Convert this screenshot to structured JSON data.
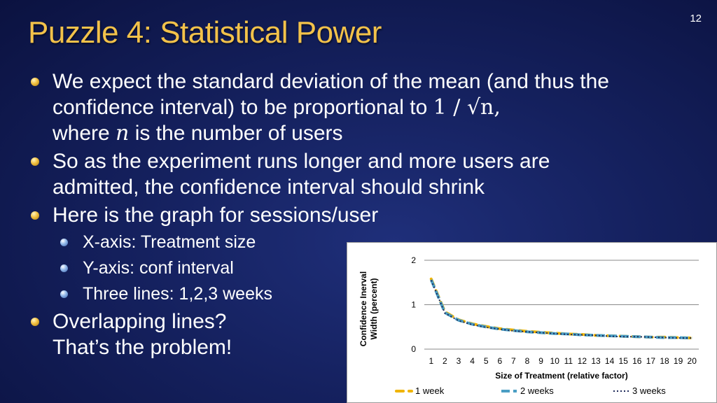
{
  "slide": {
    "number": "12",
    "title": "Puzzle 4: Statistical Power"
  },
  "bullets": {
    "b1_line1": "We expect the standard deviation of the mean (and thus the",
    "b1_line2_a": "confidence interval) to be proportional to ",
    "b1_math": "1 / √n,",
    "b1_line3_a": "where ",
    "b1_n": "n",
    "b1_line3_b": " is the number of users",
    "b2_line1": "So as the experiment runs longer and more users are",
    "b2_line2": "admitted, the confidence interval should shrink",
    "b3": "Here is the graph for sessions/user",
    "sub1": "X-axis: Treatment size",
    "sub2": "Y-axis: conf interval",
    "sub3": "Three lines: 1,2,3 weeks",
    "b4_line1": "Overlapping lines?",
    "b4_line2": "That’s the problem!"
  },
  "colors": {
    "title": "#f3c24a",
    "week1": "#f0b400",
    "week2": "#4a9ec4",
    "week3": "#1f2a5a"
  },
  "chart_data": {
    "type": "line",
    "ylabel_line1": "Confidence Inerval",
    "ylabel_line2": "Width (percent)",
    "xlabel": "Size of Treatment (relative factor)",
    "categories": [
      "1",
      "2",
      "3",
      "4",
      "5",
      "6",
      "7",
      "8",
      "9",
      "10",
      "11",
      "12",
      "13",
      "14",
      "15",
      "16",
      "17",
      "18",
      "19",
      "20"
    ],
    "ylim": [
      0,
      2
    ],
    "yticks": [
      "0",
      "1",
      "2"
    ],
    "grid": true,
    "legend_position": "bottom",
    "series": [
      {
        "name": "1 week",
        "values": [
          1.58,
          0.84,
          0.66,
          0.57,
          0.51,
          0.46,
          0.43,
          0.4,
          0.38,
          0.36,
          0.34,
          0.33,
          0.31,
          0.3,
          0.29,
          0.28,
          0.27,
          0.27,
          0.26,
          0.25
        ]
      },
      {
        "name": "2 weeks",
        "values": [
          1.56,
          0.82,
          0.65,
          0.56,
          0.5,
          0.45,
          0.42,
          0.39,
          0.37,
          0.35,
          0.34,
          0.32,
          0.31,
          0.3,
          0.29,
          0.28,
          0.27,
          0.26,
          0.26,
          0.25
        ]
      },
      {
        "name": "3 weeks",
        "values": [
          1.55,
          0.81,
          0.64,
          0.55,
          0.49,
          0.45,
          0.41,
          0.39,
          0.37,
          0.35,
          0.33,
          0.32,
          0.31,
          0.29,
          0.28,
          0.28,
          0.27,
          0.26,
          0.25,
          0.25
        ]
      }
    ]
  }
}
